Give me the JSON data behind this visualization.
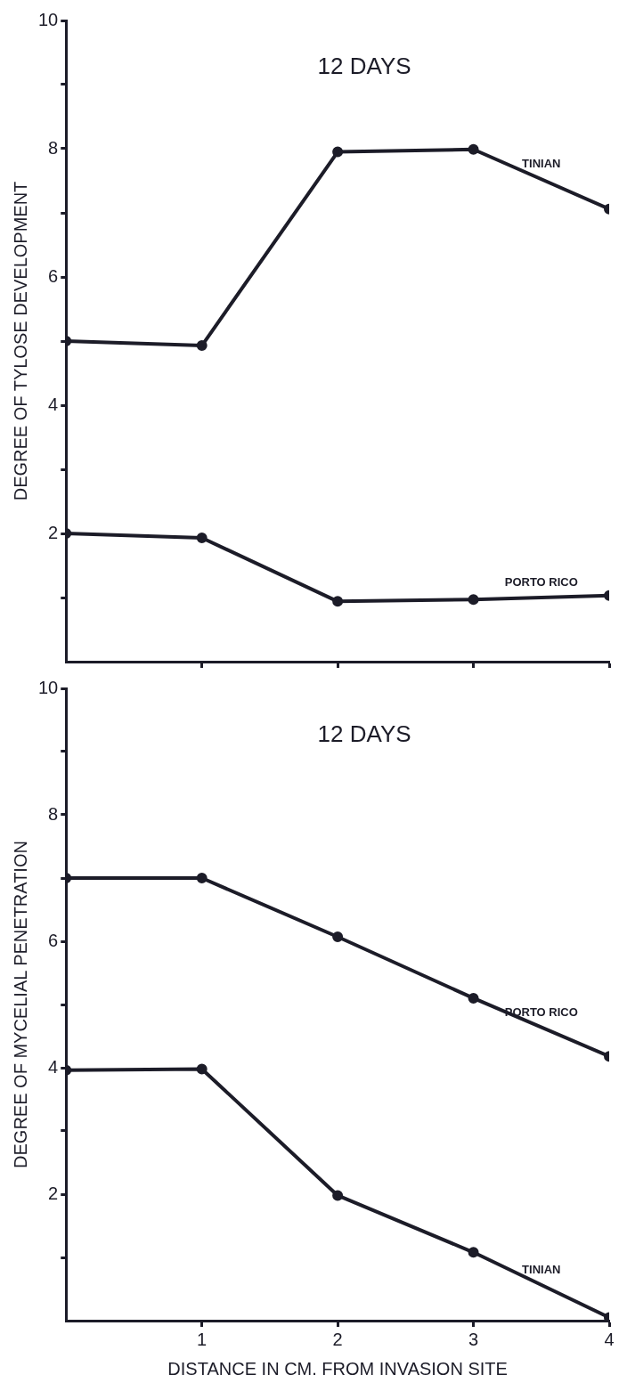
{
  "chart_data": [
    {
      "type": "line",
      "title": "12 DAYS",
      "ylabel": "DEGREE OF TYLOSE DEVELOPMENT",
      "x": [
        0,
        1,
        2,
        3,
        4
      ],
      "xlim": [
        0,
        4
      ],
      "xticks": [
        1,
        2,
        3,
        4
      ],
      "ylim": [
        0,
        10
      ],
      "yticks": [
        {
          "value": 1,
          "label": null
        },
        2,
        {
          "value": 3,
          "label": null
        },
        4,
        {
          "value": 5,
          "label": null
        },
        6,
        {
          "value": 7,
          "label": null
        },
        8,
        {
          "value": 9,
          "label": null
        },
        10
      ],
      "tick_labels": "y",
      "grid": false,
      "legend": false,
      "marker": "circle",
      "line_style": "solid",
      "series": [
        {
          "name": "TINIAN",
          "color": "#1c1c28",
          "values": [
            5,
            4.93,
            7.95,
            7.99,
            7.06
          ]
        },
        {
          "name": "PORTO RICO",
          "color": "#1c1c28",
          "values": [
            2,
            1.93,
            0.94,
            0.97,
            1.03
          ]
        }
      ]
    },
    {
      "type": "line",
      "title": "12 DAYS",
      "xlabel": "DISTANCE IN CM. FROM INVASION SITE",
      "ylabel": "DEGREE OF MYCELIAL PENETRATION",
      "x": [
        0,
        1,
        2,
        3,
        4
      ],
      "xlim": [
        0,
        4
      ],
      "xticks": [
        1,
        2,
        3,
        4
      ],
      "ylim": [
        0,
        10
      ],
      "yticks": [
        {
          "value": 1,
          "label": null
        },
        2,
        {
          "value": 3,
          "label": null
        },
        4,
        {
          "value": 5,
          "label": null
        },
        6,
        {
          "value": 7,
          "label": null
        },
        8,
        {
          "value": 9,
          "label": null
        },
        10
      ],
      "grid": false,
      "legend": false,
      "marker": "circle",
      "line_style": "solid",
      "series": [
        {
          "name": "PORTO RICO",
          "color": "#1c1c28",
          "values": [
            7,
            7.0,
            6.07,
            5.1,
            4.18
          ]
        },
        {
          "name": "TINIAN",
          "color": "#1c1c28",
          "values": [
            3.96,
            3.98,
            1.98,
            1.08,
            0.05
          ]
        }
      ]
    }
  ]
}
